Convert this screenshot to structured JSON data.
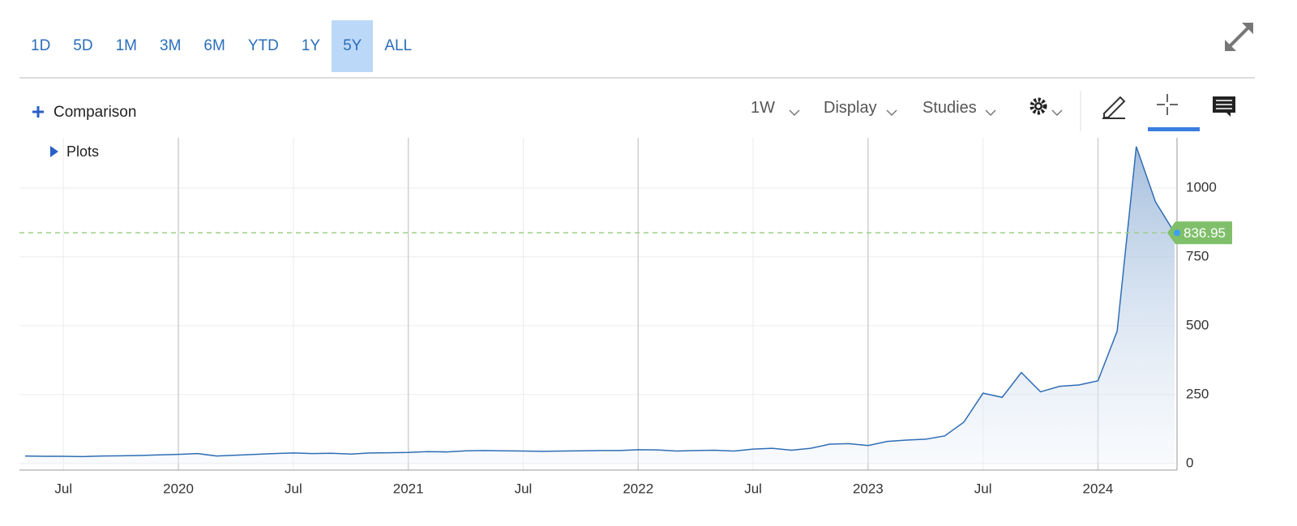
{
  "toolbar": {
    "ranges": [
      "1D",
      "5D",
      "1M",
      "3M",
      "6M",
      "YTD",
      "1Y",
      "5Y",
      "ALL"
    ],
    "active_range": "5Y",
    "comparison": "Comparison",
    "interval": "1W",
    "display": "Display",
    "studies": "Studies",
    "plots": "Plots"
  },
  "chart_data": {
    "type": "area",
    "x": [
      "2019-05",
      "2019-06",
      "2019-07",
      "2019-08",
      "2019-09",
      "2019-10",
      "2019-11",
      "2019-12",
      "2020-01",
      "2020-02",
      "2020-03",
      "2020-04",
      "2020-05",
      "2020-06",
      "2020-07",
      "2020-08",
      "2020-09",
      "2020-10",
      "2020-11",
      "2020-12",
      "2021-01",
      "2021-02",
      "2021-03",
      "2021-04",
      "2021-05",
      "2021-06",
      "2021-07",
      "2021-08",
      "2021-09",
      "2021-10",
      "2021-11",
      "2021-12",
      "2022-01",
      "2022-02",
      "2022-03",
      "2022-04",
      "2022-05",
      "2022-06",
      "2022-07",
      "2022-08",
      "2022-09",
      "2022-10",
      "2022-11",
      "2022-12",
      "2023-01",
      "2023-02",
      "2023-03",
      "2023-04",
      "2023-05",
      "2023-06",
      "2023-07",
      "2023-08",
      "2023-09",
      "2023-10",
      "2023-11",
      "2023-12",
      "2024-01",
      "2024-02",
      "2024-03",
      "2024-04",
      "2024-05"
    ],
    "series": [
      {
        "color": "#2f6db5",
        "values": [
          27,
          26,
          26,
          25,
          27,
          28,
          29,
          31,
          33,
          36,
          27,
          30,
          33,
          36,
          38,
          36,
          37,
          34,
          38,
          39,
          40,
          43,
          42,
          46,
          47,
          46,
          45,
          44,
          45,
          46,
          47,
          47,
          50,
          49,
          45,
          47,
          48,
          45,
          52,
          55,
          48,
          55,
          70,
          72,
          65,
          80,
          85,
          88,
          100,
          150,
          255,
          240,
          330,
          260,
          280,
          285,
          300,
          480,
          1150,
          950,
          836.95
        ]
      }
    ],
    "last_price": 836.95,
    "xlim": [
      "2019-05",
      "2024-05"
    ],
    "xticks": [
      {
        "value": "2019-07",
        "label": "Jul"
      },
      {
        "value": "2020-01",
        "label": "2020"
      },
      {
        "value": "2020-07",
        "label": "Jul"
      },
      {
        "value": "2021-01",
        "label": "2021"
      },
      {
        "value": "2021-07",
        "label": "Jul"
      },
      {
        "value": "2022-01",
        "label": "2022"
      },
      {
        "value": "2022-07",
        "label": "Jul"
      },
      {
        "value": "2023-01",
        "label": "2023"
      },
      {
        "value": "2023-07",
        "label": "Jul"
      },
      {
        "value": "2024-01",
        "label": "2024"
      }
    ],
    "ylim": [
      -24,
      1182
    ],
    "yticks": [
      0,
      250,
      500,
      750,
      1000
    ],
    "grid": true
  }
}
